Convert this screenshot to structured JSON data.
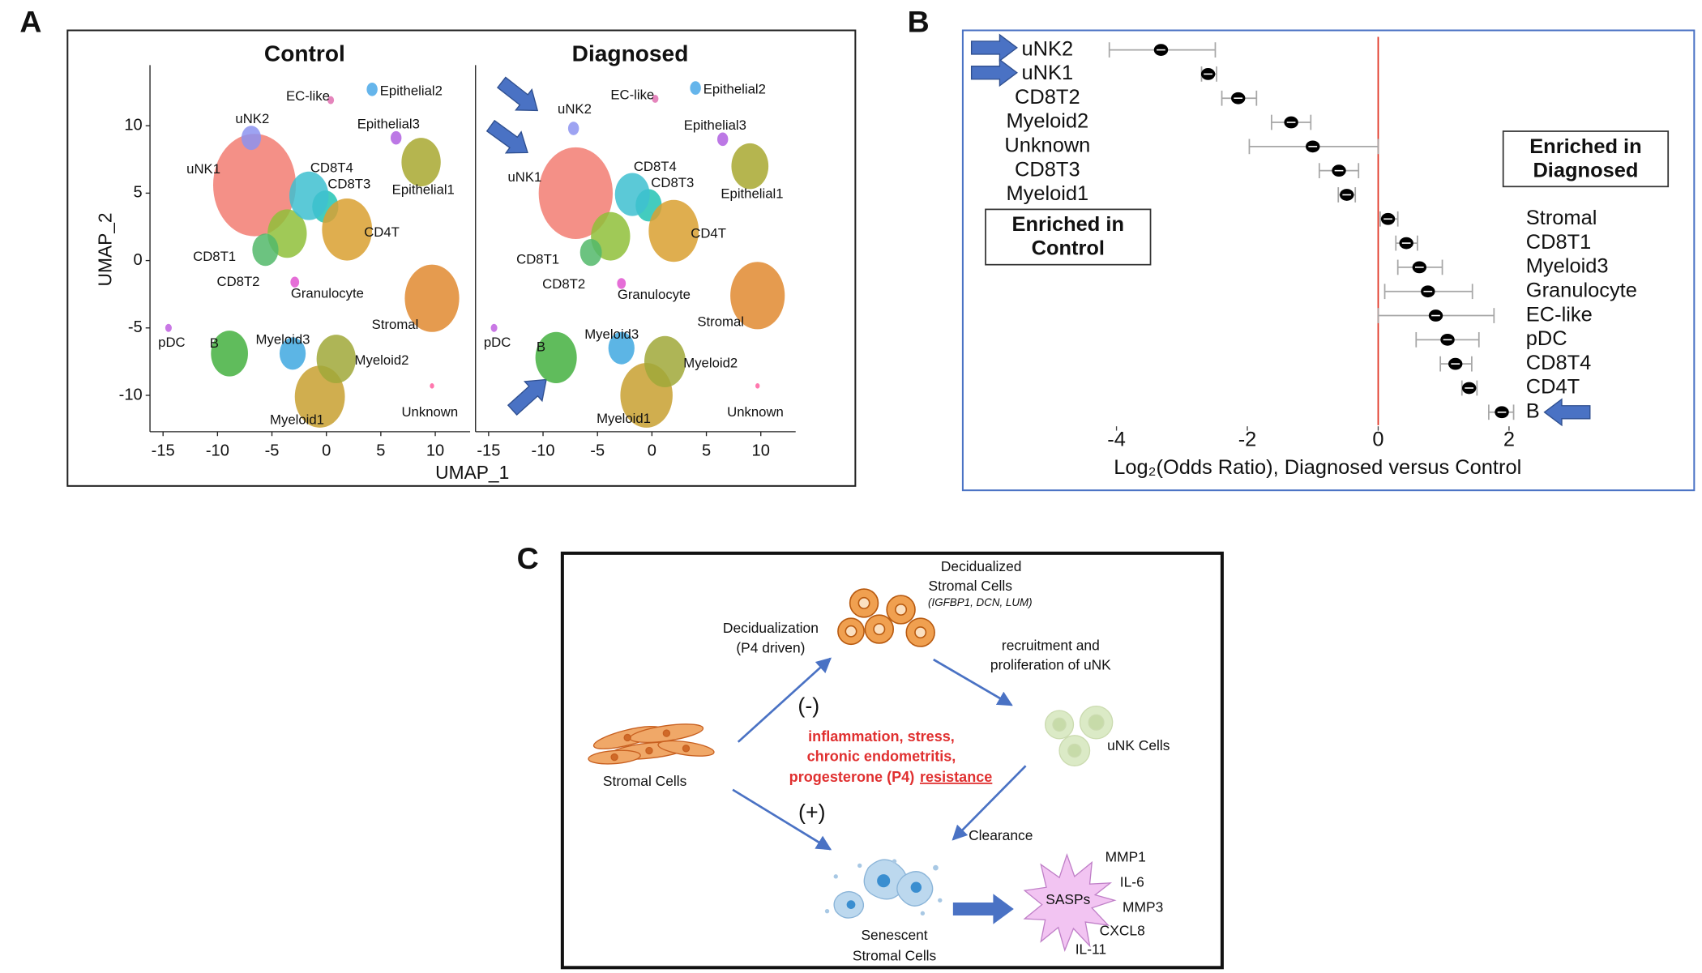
{
  "panel_labels": [
    "A",
    "B",
    "C"
  ],
  "chart_data": [
    {
      "type": "scatter",
      "title": "Control",
      "xlabel": "UMAP_1",
      "ylabel": "UMAP_2",
      "categories": [
        "uNK1",
        "uNK2",
        "CD8T1",
        "CD8T2",
        "CD8T3",
        "CD8T4",
        "CD4T",
        "Granulocyte",
        "Stromal",
        "Epithelial1",
        "Epithelial2",
        "Epithelial3",
        "EC-like",
        "pDC",
        "B",
        "Myeloid1",
        "Myeloid2",
        "Myeloid3",
        "Unknown"
      ],
      "colors": [
        "#f27d72",
        "#8c93f0",
        "#8fbf3a",
        "#52b86a",
        "#22c3b4",
        "#3ec0d0",
        "#d9a030",
        "#e055d0",
        "#e08a30",
        "#a8a830",
        "#4aa8e8",
        "#b060e0",
        "#e070b0",
        "#c060e0",
        "#44b040",
        "#c8a030",
        "#a0a838",
        "#40a8e0",
        "#ff60a0"
      ],
      "x": [
        -6.6,
        -6.9,
        -3.6,
        -5.6,
        -0.1,
        -1.6,
        1.9,
        -2.9,
        9.7,
        8.7,
        4.2,
        6.4,
        0.4,
        -14.5,
        -8.9,
        -0.6,
        0.9,
        -3.1,
        9.7
      ],
      "y": [
        5.6,
        9.1,
        2.0,
        0.8,
        4.0,
        4.8,
        2.3,
        -1.6,
        -2.8,
        7.3,
        12.7,
        9.1,
        11.9,
        -5.0,
        -6.9,
        -10.1,
        -7.3,
        -6.9,
        -9.3
      ],
      "sizes": [
        3.8,
        0.9,
        1.8,
        1.2,
        1.2,
        1.8,
        2.3,
        0.4,
        2.5,
        1.8,
        0.5,
        0.5,
        0.3,
        0.3,
        1.7,
        2.3,
        1.8,
        1.2,
        0.2
      ],
      "xlim": [
        -16.2,
        13.2
      ],
      "ylim": [
        -12.7,
        14.5
      ],
      "xticks": [
        -15,
        -10,
        -5,
        0,
        5,
        10
      ],
      "yticks": [
        -10,
        -5,
        0,
        5,
        10
      ]
    },
    {
      "type": "scatter",
      "title": "Diagnosed",
      "categories": [
        "uNK1",
        "uNK2",
        "CD8T1",
        "CD8T2",
        "CD8T3",
        "CD8T4",
        "CD4T",
        "Granulocyte",
        "Stromal",
        "Epithelial1",
        "Epithelial2",
        "Epithelial3",
        "EC-like",
        "pDC",
        "B",
        "Myeloid1",
        "Myeloid2",
        "Myeloid3",
        "Unknown"
      ],
      "colors": [
        "#f27d72",
        "#8c93f0",
        "#8fbf3a",
        "#52b86a",
        "#22c3b4",
        "#3ec0d0",
        "#d9a030",
        "#e055d0",
        "#e08a30",
        "#a8a830",
        "#4aa8e8",
        "#b060e0",
        "#e070b0",
        "#c060e0",
        "#44b040",
        "#c8a030",
        "#a0a838",
        "#40a8e0",
        "#ff60a0"
      ],
      "x": [
        -7.0,
        -7.2,
        -3.8,
        -5.6,
        -0.3,
        -1.8,
        2.0,
        -2.8,
        9.7,
        9.0,
        4.0,
        6.5,
        0.3,
        -14.5,
        -8.8,
        -0.5,
        1.2,
        -2.8,
        9.7
      ],
      "y": [
        5.0,
        9.8,
        1.8,
        0.6,
        4.1,
        4.9,
        2.2,
        -1.7,
        -2.6,
        7.0,
        12.8,
        9.0,
        12.0,
        -5.0,
        -7.2,
        -10.0,
        -7.5,
        -6.5,
        -9.3
      ],
      "sizes": [
        3.4,
        0.5,
        1.8,
        1.0,
        1.2,
        1.6,
        2.3,
        0.4,
        2.5,
        1.7,
        0.5,
        0.5,
        0.3,
        0.3,
        1.9,
        2.4,
        1.9,
        1.2,
        0.2
      ],
      "xlim": [
        -16.2,
        13.2
      ],
      "ylim": [
        -12.7,
        14.5
      ],
      "xticks": [
        -15,
        -10,
        -5,
        0,
        5,
        10
      ]
    },
    {
      "type": "forest",
      "categories": [
        "uNK2",
        "uNK1",
        "CD8T2",
        "Myeloid2",
        "Unknown",
        "CD8T3",
        "Myeloid1",
        "Stromal",
        "CD8T1",
        "Myeloid3",
        "Granulocyte",
        "EC-like",
        "pDC",
        "CD8T4",
        "CD4T",
        "B"
      ],
      "values": [
        -3.32,
        -2.6,
        -2.14,
        -1.33,
        -1.0,
        -0.6,
        -0.48,
        0.15,
        0.43,
        0.63,
        0.76,
        0.88,
        1.06,
        1.18,
        1.39,
        1.89
      ],
      "ci_low": [
        -4.11,
        -2.7,
        -2.39,
        -1.63,
        -1.97,
        -0.9,
        -0.61,
        0.03,
        0.27,
        0.3,
        0.1,
        0.0,
        0.58,
        0.95,
        1.28,
        1.69
      ],
      "ci_high": [
        -2.49,
        -2.47,
        -1.86,
        -1.03,
        0.0,
        -0.3,
        -0.35,
        0.3,
        0.6,
        0.98,
        1.44,
        1.77,
        1.54,
        1.43,
        1.51,
        2.07
      ],
      "xlim": [
        -6.3,
        4.78
      ],
      "xticks": [
        -4,
        -2,
        0,
        2
      ],
      "xlabel": "Log₂(Odds Ratio), Diagnosed versus Control",
      "reference_x": 0,
      "reference_color": "#e03020",
      "color": "#000000",
      "ci_color": "#a6a6a6",
      "annotations": [
        [
          "Enriched in",
          "Control"
        ],
        [
          "Enriched in",
          "Diagnosed"
        ]
      ]
    }
  ],
  "diagram": {
    "decidualized": [
      "Decidualized",
      "Stromal Cells"
    ],
    "decidualized_markers": "(IGFBP1, DCN, LUM)",
    "decidualization": [
      "Decidualization",
      "(P4 driven)"
    ],
    "recruitment": [
      "recruitment and",
      "proliferation of uNK"
    ],
    "minus": "(-)",
    "plus": "(+)",
    "stressors": [
      "inflammation, stress,",
      "chronic endometritis,",
      "progesterone (P4)"
    ],
    "stressor_underlined": "resistance",
    "stromal": "Stromal Cells",
    "unk": "uNK Cells",
    "clearance": "Clearance",
    "senescent": [
      "Senescent",
      "Stromal Cells"
    ],
    "sasps": "SASPs",
    "sasp_factors": [
      "MMP1",
      "IL-6",
      "MMP3",
      "CXCL8",
      "IL-11"
    ]
  }
}
